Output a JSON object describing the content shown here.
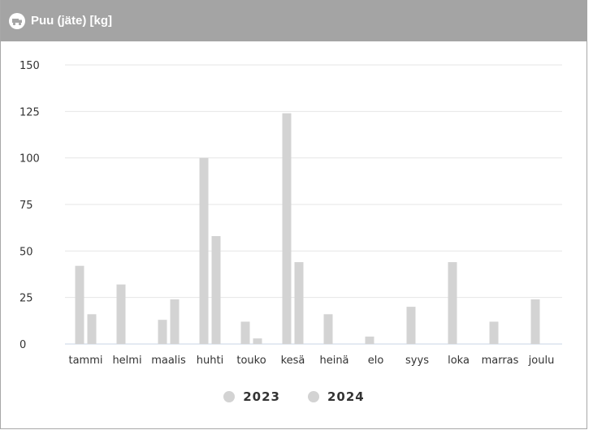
{
  "header": {
    "title": "Puu (jäte) [kg]",
    "icon": "recycle-truck-icon"
  },
  "colors": {
    "header_bg": "#a4a4a4",
    "series_2023": "#d3d3d3",
    "series_2024": "#d3d3d3",
    "grid": "#e6e6e6",
    "baseline": "#c8d4e6"
  },
  "chart_data": {
    "type": "bar",
    "title": "Puu (jäte) [kg]",
    "categories": [
      "tammi",
      "helmi",
      "maalis",
      "huhti",
      "touko",
      "kesä",
      "heinä",
      "elo",
      "syys",
      "loka",
      "marras",
      "joulu"
    ],
    "series": [
      {
        "name": "2023",
        "values": [
          42,
          32,
          13,
          100,
          12,
          124,
          16,
          4,
          20,
          44,
          12,
          24
        ]
      },
      {
        "name": "2024",
        "values": [
          16,
          0,
          24,
          58,
          3,
          44,
          0,
          0,
          0,
          0,
          0,
          0
        ]
      }
    ],
    "ylim": [
      0,
      150
    ],
    "yticks": [
      "0",
      "25",
      "50",
      "75",
      "100",
      "125",
      "150"
    ],
    "grid": true,
    "legend": "bottom-center"
  }
}
